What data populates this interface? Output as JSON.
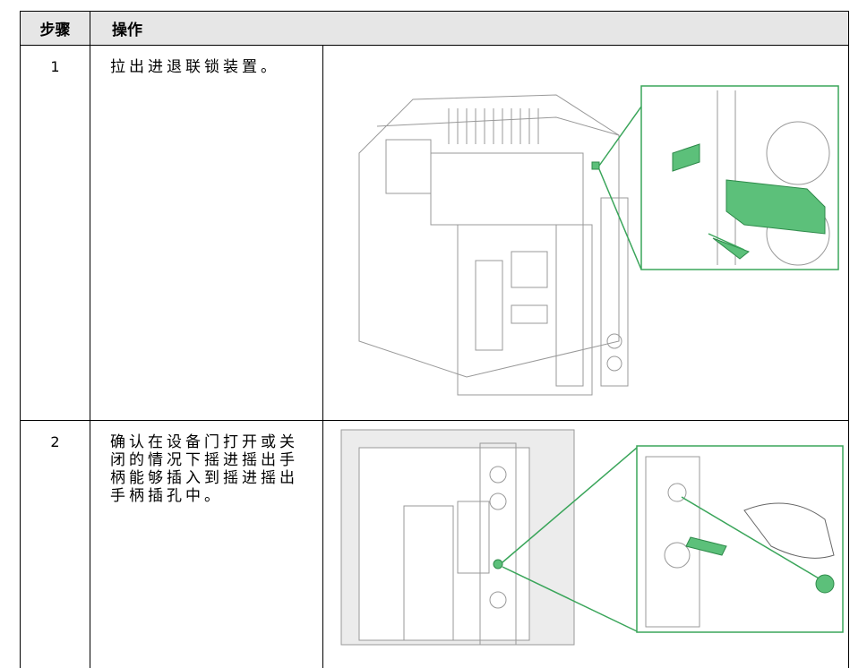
{
  "table": {
    "header": [
      "步骤",
      "操作"
    ],
    "rows": [
      {
        "step": "1",
        "text": "拉出进退联锁装置。"
      },
      {
        "step": "2",
        "text": "确认在设备门打开或关闭的情况下摇进摇出手柄能够插入到摇进摇出手柄插孔中。"
      }
    ]
  }
}
